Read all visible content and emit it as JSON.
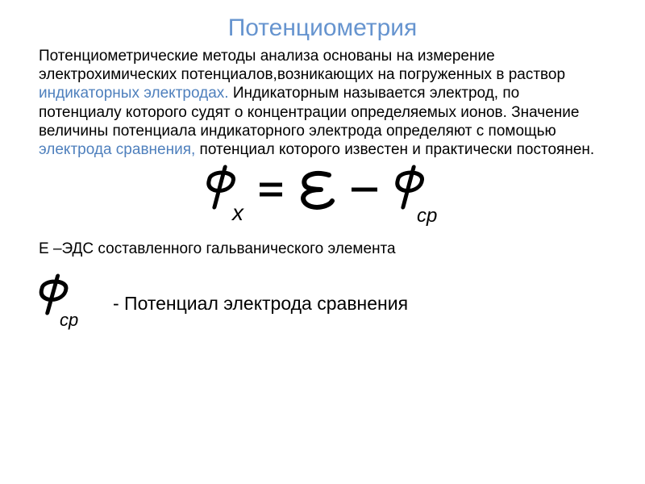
{
  "slide": {
    "title": "Потенциометрия",
    "title_color": "#6694cf",
    "paragraph": {
      "parts": [
        {
          "text": "Потенциометрические методы анализа основаны на измерение электрохимических потенциалов,возникающих на погруженных в раствор ",
          "color": "#000000"
        },
        {
          "text": "индикаторных электродах.",
          "color": "#4f80bd"
        },
        {
          "text": " Индикаторным называется электрод, по потенциалу которого судят о концентрации определяемых ионов. Значение величины потенциала индикаторного электрода определяют с помощью ",
          "color": "#000000"
        },
        {
          "text": "электрода сравнения,",
          "color": "#4f80bd"
        },
        {
          "text": " потенциал которого известен и практически постоянен.",
          "color": "#000000"
        }
      ],
      "font_size": 19,
      "line_height": 1.22
    },
    "formula": {
      "text_repr": "φ_x = ε − φ_ср",
      "color": "#000000",
      "stroke_width": 5,
      "font_style": "italic-serif"
    },
    "emf_line": "Е –ЭДС составленного гальванического элемента",
    "footer": {
      "symbol_text": "φ_ср",
      "symbol_color": "#000000",
      "label": "- Потенциал электрода сравнения",
      "label_font_size": 23
    },
    "background_color": "#ffffff"
  }
}
